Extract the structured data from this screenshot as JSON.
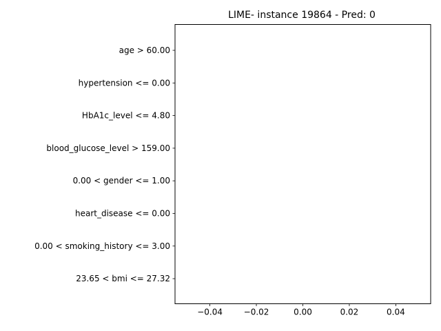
{
  "chart_data": {
    "type": "bar",
    "orientation": "horizontal",
    "title": "LIME- instance 19864 - Pred: 0",
    "xlabel": "",
    "ylabel": "",
    "categories": [
      "age > 60.00",
      "hypertension <= 0.00",
      "HbA1c_level <= 4.80",
      "blood_glucose_level > 159.00",
      "0.00 < gender <= 1.00",
      "heart_disease <= 0.00",
      "0.00 < smoking_history <= 3.00",
      "23.65 < bmi <= 27.32"
    ],
    "values": [
      0,
      0,
      0,
      0,
      0,
      0,
      0,
      0
    ],
    "xlim": [
      -0.055,
      0.055
    ],
    "xticks": [
      -0.04,
      -0.02,
      0.0,
      0.02,
      0.04
    ],
    "xtick_labels": [
      "−0.04",
      "−0.02",
      "0.00",
      "0.02",
      "0.04"
    ],
    "grid": false,
    "legend": "none"
  }
}
